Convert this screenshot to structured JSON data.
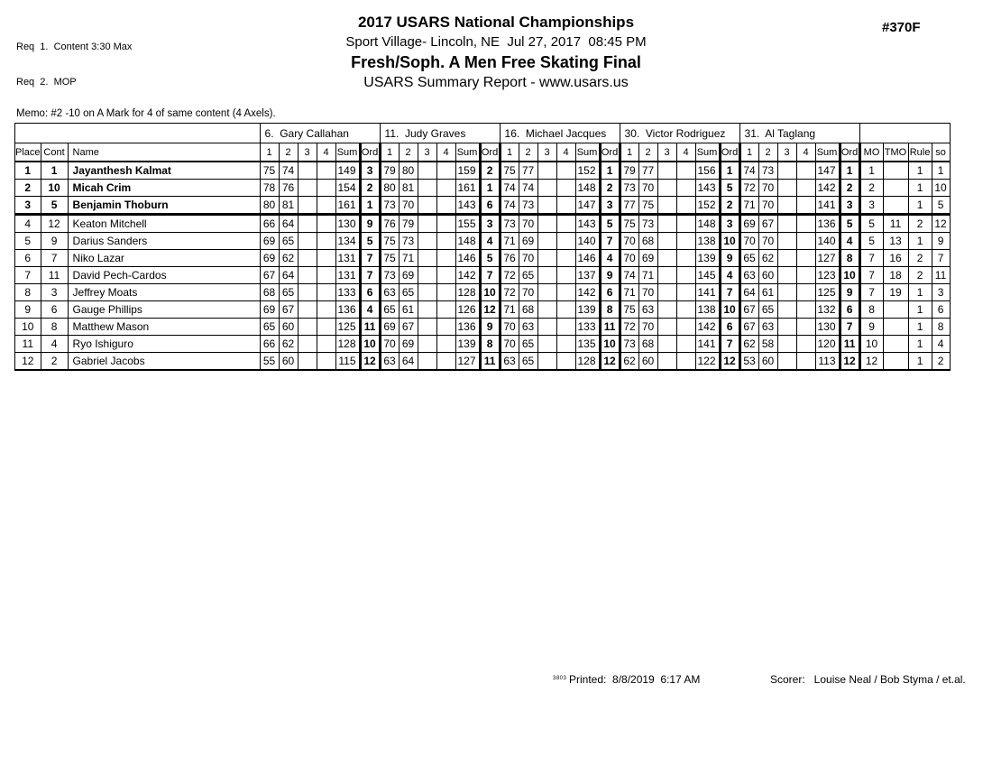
{
  "page": {
    "req_line1": "Req  1.  Content 3:30 Max",
    "req_line2": "Req  2.  MOP",
    "event_number": "#370F",
    "title": "2017 USARS National Championships",
    "venue_line": "Sport Village- Lincoln, NE  Jul 27, 2017  08:45 PM",
    "event_title": "Fresh/Soph. A Men Free Skating Final",
    "report_line": "USARS Summary Report - www.usars.us",
    "memo": "Memo: #2 -10 on A Mark for 4 of same content (4 Axels)."
  },
  "table": {
    "corner_headers": [
      "Place",
      "Cont",
      "Name"
    ],
    "judges": [
      "6.  Gary Callahan",
      "11.  Judy Graves",
      "16.  Michael Jacques",
      "30.  Victor Rodriguez",
      "31.  Al Taglang"
    ],
    "judge_subheaders": [
      "1",
      "2",
      "3",
      "4",
      "Sum",
      "Ord"
    ],
    "result_headers": [
      "MO",
      "TMO",
      "Rule",
      "so"
    ],
    "rows": [
      {
        "place": "1",
        "cont": "1",
        "name": "Jayanthesh Kalmat",
        "bold": true,
        "judges": [
          [
            "75",
            "74",
            "",
            "",
            "149",
            "3"
          ],
          [
            "79",
            "80",
            "",
            "",
            "159",
            "2"
          ],
          [
            "75",
            "77",
            "",
            "",
            "152",
            "1"
          ],
          [
            "79",
            "77",
            "",
            "",
            "156",
            "1"
          ],
          [
            "74",
            "73",
            "",
            "",
            "147",
            "1"
          ]
        ],
        "mo": "1",
        "tmo": "",
        "rule": "1",
        "so": "1"
      },
      {
        "place": "2",
        "cont": "10",
        "name": "Micah Crim",
        "bold": true,
        "judges": [
          [
            "78",
            "76",
            "",
            "",
            "154",
            "2"
          ],
          [
            "80",
            "81",
            "",
            "",
            "161",
            "1"
          ],
          [
            "74",
            "74",
            "",
            "",
            "148",
            "2"
          ],
          [
            "73",
            "70",
            "",
            "",
            "143",
            "5"
          ],
          [
            "72",
            "70",
            "",
            "",
            "142",
            "2"
          ]
        ],
        "mo": "2",
        "tmo": "",
        "rule": "1",
        "so": "10"
      },
      {
        "place": "3",
        "cont": "5",
        "name": "Benjamin Thoburn",
        "bold": true,
        "judges": [
          [
            "80",
            "81",
            "",
            "",
            "161",
            "1"
          ],
          [
            "73",
            "70",
            "",
            "",
            "143",
            "6"
          ],
          [
            "74",
            "73",
            "",
            "",
            "147",
            "3"
          ],
          [
            "77",
            "75",
            "",
            "",
            "152",
            "2"
          ],
          [
            "71",
            "70",
            "",
            "",
            "141",
            "3"
          ]
        ],
        "mo": "3",
        "tmo": "",
        "rule": "1",
        "so": "5"
      },
      {
        "place": "4",
        "cont": "12",
        "name": "Keaton Mitchell",
        "bold": false,
        "judges": [
          [
            "66",
            "64",
            "",
            "",
            "130",
            "9"
          ],
          [
            "76",
            "79",
            "",
            "",
            "155",
            "3"
          ],
          [
            "73",
            "70",
            "",
            "",
            "143",
            "5"
          ],
          [
            "75",
            "73",
            "",
            "",
            "148",
            "3"
          ],
          [
            "69",
            "67",
            "",
            "",
            "136",
            "5"
          ]
        ],
        "mo": "5",
        "tmo": "11",
        "rule": "2",
        "so": "12"
      },
      {
        "place": "5",
        "cont": "9",
        "name": "Darius Sanders",
        "bold": false,
        "judges": [
          [
            "69",
            "65",
            "",
            "",
            "134",
            "5"
          ],
          [
            "75",
            "73",
            "",
            "",
            "148",
            "4"
          ],
          [
            "71",
            "69",
            "",
            "",
            "140",
            "7"
          ],
          [
            "70",
            "68",
            "",
            "",
            "138",
            "10"
          ],
          [
            "70",
            "70",
            "",
            "",
            "140",
            "4"
          ]
        ],
        "mo": "5",
        "tmo": "13",
        "rule": "1",
        "so": "9"
      },
      {
        "place": "6",
        "cont": "7",
        "name": "Niko Lazar",
        "bold": false,
        "judges": [
          [
            "69",
            "62",
            "",
            "",
            "131",
            "7"
          ],
          [
            "75",
            "71",
            "",
            "",
            "146",
            "5"
          ],
          [
            "76",
            "70",
            "",
            "",
            "146",
            "4"
          ],
          [
            "70",
            "69",
            "",
            "",
            "139",
            "9"
          ],
          [
            "65",
            "62",
            "",
            "",
            "127",
            "8"
          ]
        ],
        "mo": "7",
        "tmo": "16",
        "rule": "2",
        "so": "7"
      },
      {
        "place": "7",
        "cont": "11",
        "name": "David Pech-Cardos",
        "bold": false,
        "judges": [
          [
            "67",
            "64",
            "",
            "",
            "131",
            "7"
          ],
          [
            "73",
            "69",
            "",
            "",
            "142",
            "7"
          ],
          [
            "72",
            "65",
            "",
            "",
            "137",
            "9"
          ],
          [
            "74",
            "71",
            "",
            "",
            "145",
            "4"
          ],
          [
            "63",
            "60",
            "",
            "",
            "123",
            "10"
          ]
        ],
        "mo": "7",
        "tmo": "18",
        "rule": "2",
        "so": "11"
      },
      {
        "place": "8",
        "cont": "3",
        "name": "Jeffrey Moats",
        "bold": false,
        "judges": [
          [
            "68",
            "65",
            "",
            "",
            "133",
            "6"
          ],
          [
            "63",
            "65",
            "",
            "",
            "128",
            "10"
          ],
          [
            "72",
            "70",
            "",
            "",
            "142",
            "6"
          ],
          [
            "71",
            "70",
            "",
            "",
            "141",
            "7"
          ],
          [
            "64",
            "61",
            "",
            "",
            "125",
            "9"
          ]
        ],
        "mo": "7",
        "tmo": "19",
        "rule": "1",
        "so": "3"
      },
      {
        "place": "9",
        "cont": "6",
        "name": "Gauge Phillips",
        "bold": false,
        "judges": [
          [
            "69",
            "67",
            "",
            "",
            "136",
            "4"
          ],
          [
            "65",
            "61",
            "",
            "",
            "126",
            "12"
          ],
          [
            "71",
            "68",
            "",
            "",
            "139",
            "8"
          ],
          [
            "75",
            "63",
            "",
            "",
            "138",
            "10"
          ],
          [
            "67",
            "65",
            "",
            "",
            "132",
            "6"
          ]
        ],
        "mo": "8",
        "tmo": "",
        "rule": "1",
        "so": "6"
      },
      {
        "place": "10",
        "cont": "8",
        "name": "Matthew Mason",
        "bold": false,
        "judges": [
          [
            "65",
            "60",
            "",
            "",
            "125",
            "11"
          ],
          [
            "69",
            "67",
            "",
            "",
            "136",
            "9"
          ],
          [
            "70",
            "63",
            "",
            "",
            "133",
            "11"
          ],
          [
            "72",
            "70",
            "",
            "",
            "142",
            "6"
          ],
          [
            "67",
            "63",
            "",
            "",
            "130",
            "7"
          ]
        ],
        "mo": "9",
        "tmo": "",
        "rule": "1",
        "so": "8"
      },
      {
        "place": "11",
        "cont": "4",
        "name": "Ryo Ishiguro",
        "bold": false,
        "judges": [
          [
            "66",
            "62",
            "",
            "",
            "128",
            "10"
          ],
          [
            "70",
            "69",
            "",
            "",
            "139",
            "8"
          ],
          [
            "70",
            "65",
            "",
            "",
            "135",
            "10"
          ],
          [
            "73",
            "68",
            "",
            "",
            "141",
            "7"
          ],
          [
            "62",
            "58",
            "",
            "",
            "120",
            "11"
          ]
        ],
        "mo": "10",
        "tmo": "",
        "rule": "1",
        "so": "4"
      },
      {
        "place": "12",
        "cont": "2",
        "name": "Gabriel Jacobs",
        "bold": false,
        "judges": [
          [
            "55",
            "60",
            "",
            "",
            "115",
            "12"
          ],
          [
            "63",
            "64",
            "",
            "",
            "127",
            "11"
          ],
          [
            "63",
            "65",
            "",
            "",
            "128",
            "12"
          ],
          [
            "62",
            "60",
            "",
            "",
            "122",
            "12"
          ],
          [
            "53",
            "60",
            "",
            "",
            "113",
            "12"
          ]
        ],
        "mo": "12",
        "tmo": "",
        "rule": "1",
        "so": "2"
      }
    ]
  },
  "footer": {
    "version_code": "3803",
    "printed": "Printed:  8/8/2019  6:17 AM",
    "scorer": "Scorer:   Louise Neal / Bob Styma / et.al."
  }
}
